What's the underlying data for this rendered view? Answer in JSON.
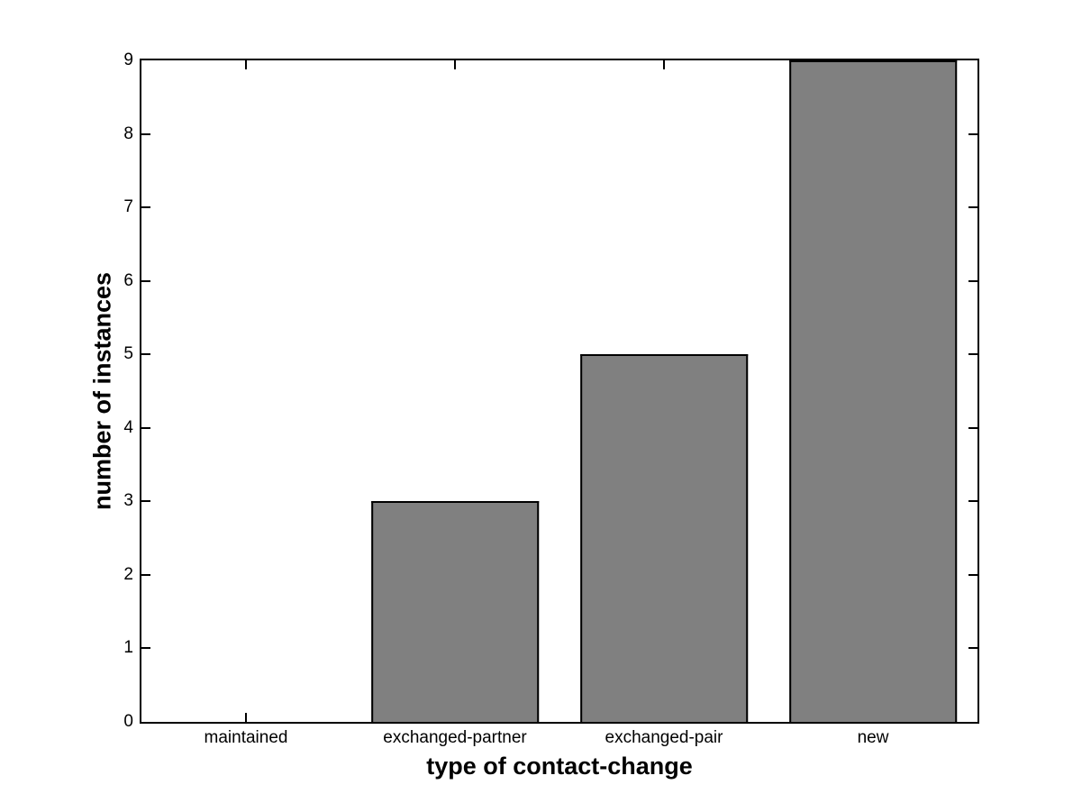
{
  "figure": {
    "background": "#ffffff"
  },
  "chart_data": {
    "type": "bar",
    "title": "",
    "xlabel": "type of contact-change",
    "ylabel": "number of instances",
    "categories": [
      "maintained",
      "exchanged-partner",
      "exchanged-pair",
      "new"
    ],
    "values": [
      0,
      3,
      5,
      9
    ],
    "ylim": [
      0,
      9
    ],
    "yticks": [
      0,
      1,
      2,
      3,
      4,
      5,
      6,
      7,
      8,
      9
    ],
    "bar_width_fraction": 0.8,
    "grid": "off",
    "legend": "none",
    "box": "on",
    "tick_direction": "in",
    "colors": {
      "bar_fill": "#808080",
      "bar_edge": "#000000",
      "axis": "#000000",
      "text": "#000000",
      "background": "#ffffff"
    }
  }
}
